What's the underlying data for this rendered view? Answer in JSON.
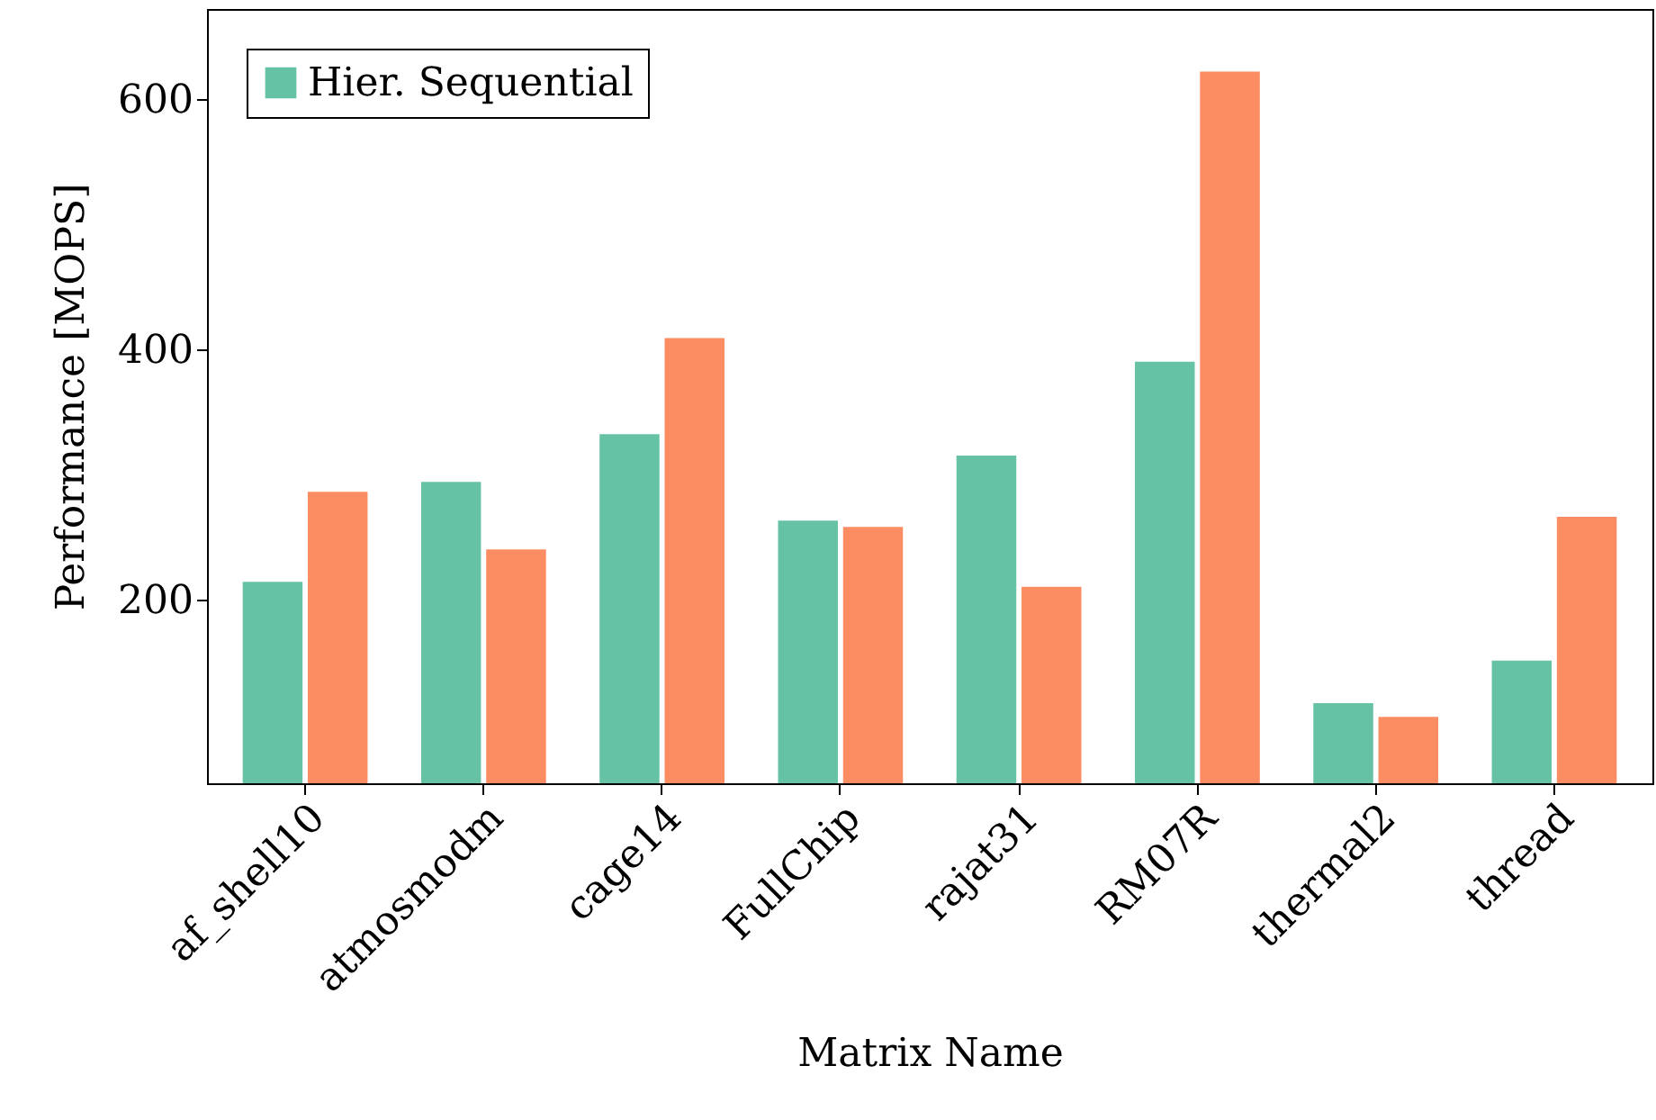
{
  "chart_data": {
    "type": "bar",
    "xlabel": "Matrix Name",
    "ylabel": "Performance [MOPS]",
    "categories": [
      "af_shell10",
      "atmosmodm",
      "cage14",
      "FullChip",
      "rajat31",
      "RM07R",
      "thermal2",
      "thread"
    ],
    "series": [
      {
        "name": "Hier. Sequential",
        "color": "#66c2a5",
        "values": [
          214,
          294,
          332,
          263,
          315,
          390,
          117,
          151
        ]
      },
      {
        "color": "#fc8d62",
        "values": [
          286,
          240,
          409,
          258,
          210,
          622,
          106,
          266
        ]
      }
    ],
    "ylim": [
      53,
      672
    ],
    "yticks": [
      200,
      400,
      600
    ],
    "grid": false,
    "legend": "top left"
  }
}
